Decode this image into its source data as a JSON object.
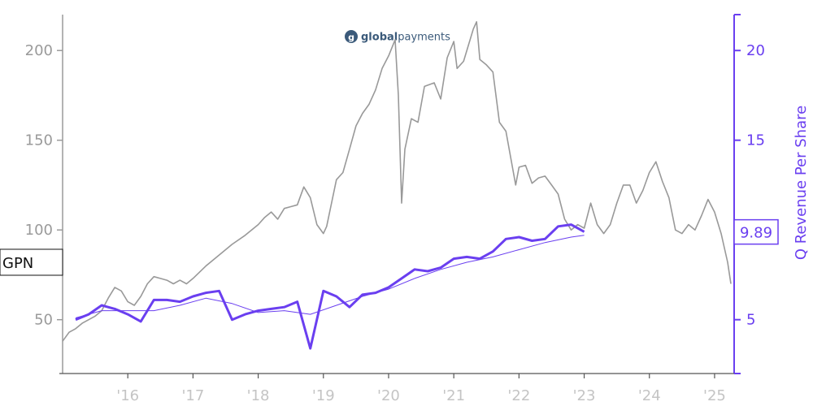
{
  "chart_data": {
    "type": "line",
    "logo": {
      "brand": "globalpayments",
      "brand_bold": "global",
      "brand_light": "payments",
      "glyph": "g",
      "color": "#3b5a7a"
    },
    "ticker_label": "GPN",
    "x_axis": {
      "range": [
        2015.0,
        2025.3
      ],
      "ticks": [
        {
          "x": 2016,
          "label": "'16"
        },
        {
          "x": 2017,
          "label": "'17"
        },
        {
          "x": 2018,
          "label": "'18"
        },
        {
          "x": 2019,
          "label": "'19"
        },
        {
          "x": 2020,
          "label": "'20"
        },
        {
          "x": 2021,
          "label": "'21"
        },
        {
          "x": 2022,
          "label": "'22"
        },
        {
          "x": 2023,
          "label": "'23"
        },
        {
          "x": 2024,
          "label": "'24"
        },
        {
          "x": 2025,
          "label": "'25"
        }
      ]
    },
    "y_left": {
      "range": [
        20,
        220
      ],
      "ticks": [
        {
          "v": 50,
          "label": "50"
        },
        {
          "v": 100,
          "label": "100"
        },
        {
          "v": 150,
          "label": "150"
        },
        {
          "v": 200,
          "label": "200"
        }
      ]
    },
    "y_right": {
      "title": "Q Revenue Per Share",
      "range": [
        2,
        22
      ],
      "ticks": [
        {
          "v": 5,
          "label": "5"
        },
        {
          "v": 15,
          "label": "15"
        },
        {
          "v": 20,
          "label": "20"
        }
      ],
      "last_value_label": "9.89",
      "last_value": 9.89
    },
    "colors": {
      "price": "#999999",
      "revenue": "#6a3ff0",
      "left_axis": "#9a9a9a",
      "right_axis": "#6a3ff0"
    },
    "series": [
      {
        "axis": "left",
        "points": [
          [
            2015.0,
            38
          ],
          [
            2015.1,
            43
          ],
          [
            2015.2,
            45
          ],
          [
            2015.3,
            48
          ],
          [
            2015.4,
            50
          ],
          [
            2015.5,
            52
          ],
          [
            2015.6,
            55
          ],
          [
            2015.7,
            62
          ],
          [
            2015.8,
            68
          ],
          [
            2015.9,
            66
          ],
          [
            2016.0,
            60
          ],
          [
            2016.1,
            58
          ],
          [
            2016.2,
            63
          ],
          [
            2016.3,
            70
          ],
          [
            2016.4,
            74
          ],
          [
            2016.5,
            73
          ],
          [
            2016.6,
            72
          ],
          [
            2016.7,
            70
          ],
          [
            2016.8,
            72
          ],
          [
            2016.9,
            70
          ],
          [
            2017.0,
            73
          ],
          [
            2017.2,
            80
          ],
          [
            2017.4,
            86
          ],
          [
            2017.6,
            92
          ],
          [
            2017.8,
            97
          ],
          [
            2018.0,
            103
          ],
          [
            2018.1,
            107
          ],
          [
            2018.2,
            110
          ],
          [
            2018.3,
            106
          ],
          [
            2018.4,
            112
          ],
          [
            2018.5,
            113
          ],
          [
            2018.6,
            114
          ],
          [
            2018.7,
            124
          ],
          [
            2018.8,
            118
          ],
          [
            2018.9,
            103
          ],
          [
            2019.0,
            98
          ],
          [
            2019.05,
            102
          ],
          [
            2019.2,
            128
          ],
          [
            2019.3,
            132
          ],
          [
            2019.4,
            145
          ],
          [
            2019.5,
            158
          ],
          [
            2019.6,
            165
          ],
          [
            2019.7,
            170
          ],
          [
            2019.8,
            178
          ],
          [
            2019.9,
            190
          ],
          [
            2020.0,
            197
          ],
          [
            2020.1,
            206
          ],
          [
            2020.15,
            175
          ],
          [
            2020.2,
            115
          ],
          [
            2020.25,
            145
          ],
          [
            2020.35,
            162
          ],
          [
            2020.45,
            160
          ],
          [
            2020.55,
            180
          ],
          [
            2020.7,
            182
          ],
          [
            2020.8,
            173
          ],
          [
            2020.9,
            196
          ],
          [
            2021.0,
            205
          ],
          [
            2021.05,
            190
          ],
          [
            2021.15,
            194
          ],
          [
            2021.3,
            212
          ],
          [
            2021.35,
            216
          ],
          [
            2021.4,
            195
          ],
          [
            2021.5,
            192
          ],
          [
            2021.6,
            188
          ],
          [
            2021.7,
            160
          ],
          [
            2021.8,
            155
          ],
          [
            2021.9,
            135
          ],
          [
            2021.95,
            125
          ],
          [
            2022.0,
            135
          ],
          [
            2022.1,
            136
          ],
          [
            2022.2,
            126
          ],
          [
            2022.3,
            129
          ],
          [
            2022.4,
            130
          ],
          [
            2022.5,
            125
          ],
          [
            2022.6,
            120
          ],
          [
            2022.7,
            106
          ],
          [
            2022.8,
            100
          ],
          [
            2022.9,
            103
          ],
          [
            2023.0,
            101
          ],
          [
            2023.1,
            115
          ],
          [
            2023.2,
            103
          ],
          [
            2023.3,
            98
          ],
          [
            2023.4,
            103
          ],
          [
            2023.5,
            115
          ],
          [
            2023.6,
            125
          ],
          [
            2023.7,
            125
          ],
          [
            2023.8,
            115
          ],
          [
            2023.9,
            122
          ],
          [
            2024.0,
            132
          ],
          [
            2024.1,
            138
          ],
          [
            2024.2,
            127
          ],
          [
            2024.3,
            118
          ],
          [
            2024.4,
            100
          ],
          [
            2024.5,
            98
          ],
          [
            2024.6,
            103
          ],
          [
            2024.7,
            100
          ],
          [
            2024.8,
            108
          ],
          [
            2024.9,
            117
          ],
          [
            2025.0,
            110
          ],
          [
            2025.1,
            98
          ],
          [
            2025.2,
            82
          ],
          [
            2025.25,
            70
          ]
        ]
      },
      {
        "axis": "right",
        "points": [
          [
            2015.2,
            5.0
          ],
          [
            2015.4,
            5.3
          ],
          [
            2015.6,
            5.8
          ],
          [
            2015.8,
            5.6
          ],
          [
            2016.0,
            5.3
          ],
          [
            2016.2,
            4.9
          ],
          [
            2016.4,
            6.1
          ],
          [
            2016.6,
            6.1
          ],
          [
            2016.8,
            6.0
          ],
          [
            2017.0,
            6.3
          ],
          [
            2017.2,
            6.5
          ],
          [
            2017.4,
            6.6
          ],
          [
            2017.6,
            5.0
          ],
          [
            2017.8,
            5.3
          ],
          [
            2018.0,
            5.5
          ],
          [
            2018.2,
            5.6
          ],
          [
            2018.4,
            5.7
          ],
          [
            2018.6,
            6.0
          ],
          [
            2018.8,
            3.4
          ],
          [
            2019.0,
            6.6
          ],
          [
            2019.2,
            6.3
          ],
          [
            2019.4,
            5.7
          ],
          [
            2019.6,
            6.4
          ],
          [
            2019.8,
            6.5
          ],
          [
            2020.0,
            6.8
          ],
          [
            2020.2,
            7.3
          ],
          [
            2020.4,
            7.8
          ],
          [
            2020.6,
            7.7
          ],
          [
            2020.8,
            7.9
          ],
          [
            2021.0,
            8.4
          ],
          [
            2021.2,
            8.5
          ],
          [
            2021.4,
            8.4
          ],
          [
            2021.6,
            8.8
          ],
          [
            2021.8,
            9.5
          ],
          [
            2022.0,
            9.6
          ],
          [
            2022.2,
            9.4
          ],
          [
            2022.4,
            9.5
          ],
          [
            2022.6,
            10.2
          ],
          [
            2022.8,
            10.3
          ],
          [
            2023.0,
            9.9
          ]
        ]
      },
      {
        "axis": "right",
        "points": [
          [
            2015.2,
            5.1
          ],
          [
            2015.6,
            5.5
          ],
          [
            2016.0,
            5.5
          ],
          [
            2016.4,
            5.5
          ],
          [
            2016.8,
            5.8
          ],
          [
            2017.2,
            6.2
          ],
          [
            2017.6,
            5.9
          ],
          [
            2018.0,
            5.4
          ],
          [
            2018.4,
            5.5
          ],
          [
            2018.8,
            5.3
          ],
          [
            2019.2,
            5.8
          ],
          [
            2019.6,
            6.3
          ],
          [
            2020.0,
            6.7
          ],
          [
            2020.4,
            7.3
          ],
          [
            2020.8,
            7.8
          ],
          [
            2021.2,
            8.2
          ],
          [
            2021.6,
            8.5
          ],
          [
            2022.0,
            8.9
          ],
          [
            2022.4,
            9.3
          ],
          [
            2022.8,
            9.6
          ],
          [
            2023.0,
            9.7
          ]
        ]
      }
    ]
  }
}
